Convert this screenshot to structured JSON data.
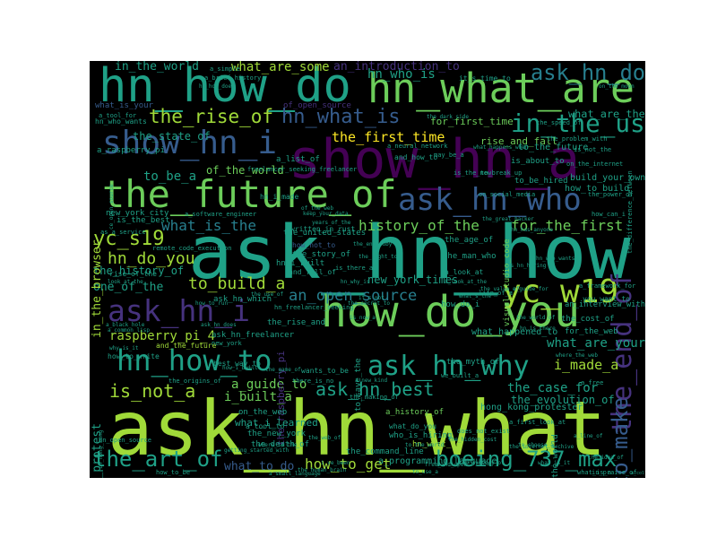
{
  "palette": {
    "background": "#000000",
    "lime": "#a0da39",
    "green": "#6ccd5a",
    "teal": "#1fa187",
    "tealDark": "#277f8e",
    "blue": "#365c8d",
    "indigo": "#46327e",
    "purple": "#440154",
    "yellow": "#fde725"
  },
  "words": [
    {
      "text": "ask_hn_what",
      "color": "lime"
    },
    {
      "text": "ask_hn_how",
      "color": "teal"
    },
    {
      "text": "show_hn_a",
      "color": "purple"
    },
    {
      "text": "hn_how_do",
      "color": "teal"
    },
    {
      "text": "hn_what_are",
      "color": "green"
    },
    {
      "text": "the_future_of",
      "color": "green"
    },
    {
      "text": "how_do_you",
      "color": "green"
    },
    {
      "text": "show_hn_i",
      "color": "blue"
    },
    {
      "text": "in_the_us",
      "color": "teal"
    },
    {
      "text": "ask_hn_who",
      "color": "blue"
    },
    {
      "text": "ask_hn_i",
      "color": "indigo"
    },
    {
      "text": "yc_w19",
      "color": "lime"
    },
    {
      "text": "hn_how_to",
      "color": "teal"
    },
    {
      "text": "ask_hn_why",
      "color": "teal"
    },
    {
      "text": "the_end_of",
      "color": "indigo"
    },
    {
      "text": "how_to_make",
      "color": "blue"
    },
    {
      "text": "ask_hn_do",
      "color": "tealDark"
    },
    {
      "text": "the_art_of",
      "color": "teal"
    },
    {
      "text": "boeing_737_max",
      "color": "teal"
    },
    {
      "text": "hn_what_is",
      "color": "blue"
    },
    {
      "text": "the_rise_of",
      "color": "lime"
    },
    {
      "text": "yc_s19",
      "color": "lime"
    },
    {
      "text": "hn_who_is",
      "color": "teal"
    },
    {
      "text": "ask_hn_best",
      "color": "teal"
    },
    {
      "text": "is_not_a",
      "color": "lime"
    },
    {
      "text": "what_are_your",
      "color": "teal"
    },
    {
      "text": "an_open_source",
      "color": "tealDark"
    },
    {
      "text": "to_build_a",
      "color": "lime"
    },
    {
      "text": "hn_do_you",
      "color": "lime"
    },
    {
      "text": "what_is_the",
      "color": "tealDark"
    },
    {
      "text": "history_of_the",
      "color": "green"
    },
    {
      "text": "for_the_first",
      "color": "green"
    },
    {
      "text": "the_first_time",
      "color": "yellow"
    },
    {
      "text": "what_are_some",
      "color": "lime"
    },
    {
      "text": "an_introduction_to",
      "color": "indigo"
    },
    {
      "text": "what_are_the",
      "color": "teal"
    },
    {
      "text": "for_first_time",
      "color": "green"
    },
    {
      "text": "the_case_for",
      "color": "teal"
    },
    {
      "text": "i_made_a",
      "color": "lime"
    },
    {
      "text": "how_to_get",
      "color": "lime"
    },
    {
      "text": "what_to_do",
      "color": "blue"
    },
    {
      "text": "a_guide_to",
      "color": "green"
    },
    {
      "text": "i_built_a",
      "color": "green"
    },
    {
      "text": "raspberry_pi_4",
      "color": "lime"
    },
    {
      "text": "the_history_of",
      "color": "teal"
    },
    {
      "text": "of_the_world",
      "color": "green"
    },
    {
      "text": "to_be_a",
      "color": "teal"
    },
    {
      "text": "in_the_world",
      "color": "teal"
    },
    {
      "text": "new_york_times",
      "color": "teal"
    },
    {
      "text": "one_of_the",
      "color": "teal"
    },
    {
      "text": "rise_and_fall",
      "color": "green"
    },
    {
      "text": "how_to_build",
      "color": "teal"
    },
    {
      "text": "build_your_own",
      "color": "teal"
    },
    {
      "text": "hong_kong_protest",
      "color": "teal"
    },
    {
      "text": "in_the_browser",
      "color": "lime"
    },
    {
      "text": "the_raspberry_pi",
      "color": "indigo"
    },
    {
      "text": "hong_kong_protester",
      "color": "teal"
    },
    {
      "text": "the_evolution_of",
      "color": "teal"
    },
    {
      "text": "the_state_of",
      "color": "teal"
    },
    {
      "text": "a_history_of",
      "color": "green"
    },
    {
      "text": "hn_what_do",
      "color": "lime"
    },
    {
      "text": "what_i_learned",
      "color": "teal"
    },
    {
      "text": "the_new_york",
      "color": "teal"
    },
    {
      "text": "the_death_of",
      "color": "teal"
    },
    {
      "text": "the_command_line",
      "color": "teal"
    },
    {
      "text": "a_programming_language",
      "color": "teal"
    },
    {
      "text": "on_the_web",
      "color": "teal"
    },
    {
      "text": "what_happened_to",
      "color": "teal"
    },
    {
      "text": "an_interview_with",
      "color": "teal"
    },
    {
      "text": "for_the_web",
      "color": "teal"
    },
    {
      "text": "the_cost_of",
      "color": "teal"
    },
    {
      "text": "visual_studio_code",
      "color": "green"
    },
    {
      "text": "the_rise_and",
      "color": "teal"
    },
    {
      "text": "the_story_of",
      "color": "teal"
    },
    {
      "text": "the_man_who",
      "color": "teal"
    },
    {
      "text": "the_age_of",
      "color": "teal"
    },
    {
      "text": "new_york_city",
      "color": "teal"
    },
    {
      "text": "is_the_best",
      "color": "teal"
    },
    {
      "text": "a_raspberry_pi",
      "color": "teal"
    },
    {
      "text": "what_is_your",
      "color": "blue"
    },
    {
      "text": "a_tool_for",
      "color": "teal"
    },
    {
      "text": "hn_who_wants",
      "color": "teal"
    },
    {
      "text": "of_open_source",
      "color": "indigo"
    },
    {
      "text": "a_list_of",
      "color": "teal"
    },
    {
      "text": "the_united_states",
      "color": "teal"
    },
    {
      "text": "how_not_to",
      "color": "blue"
    },
    {
      "text": "to_the_future",
      "color": "teal"
    },
    {
      "text": "is_about_to",
      "color": "teal"
    },
    {
      "text": "to_be_hired",
      "color": "teal"
    },
    {
      "text": "and_the_future",
      "color": "lime"
    },
    {
      "text": "ask_hn_freelancer",
      "color": "teal"
    },
    {
      "text": "rise_of_the",
      "color": "teal"
    },
    {
      "text": "how_to_write",
      "color": "teal"
    },
    {
      "text": "hn_i_made",
      "color": "teal"
    },
    {
      "text": "wants_to_be",
      "color": "teal"
    },
    {
      "text": "the_myth_of",
      "color": "teal"
    },
    {
      "text": "what_do_you",
      "color": "teal"
    },
    {
      "text": "who_is_hiring",
      "color": "teal"
    },
    {
      "text": "how_do_i",
      "color": "teal"
    },
    {
      "text": "you_want_to",
      "color": "teal"
    },
    {
      "text": "a_framework_for",
      "color": "teal"
    },
    {
      "text": "around_the_world",
      "color": "teal"
    },
    {
      "text": "what_is_a",
      "color": "teal"
    },
    {
      "text": "in_praise_of",
      "color": "teal"
    },
    {
      "text": "a_free",
      "color": "teal"
    },
    {
      "text": "getting_started_with",
      "color": "teal"
    },
    {
      "text": "how_to_be",
      "color": "teal"
    },
    {
      "text": "hn_open_source",
      "color": "teal"
    },
    {
      "text": "a_brief_history",
      "color": "teal"
    },
    {
      "text": "it_s_time_to",
      "color": "teal"
    },
    {
      "text": "a_neural_network",
      "color": "teal"
    },
    {
      "text": "freelancer_seeking_freelancer",
      "color": "teal"
    },
    {
      "text": "a_software_engineer",
      "color": "teal"
    },
    {
      "text": "and_how_to",
      "color": "teal"
    },
    {
      "text": "on_the_internet",
      "color": "teal"
    },
    {
      "text": "is_the_new",
      "color": "teal"
    },
    {
      "text": "is_not_the",
      "color": "teal"
    },
    {
      "text": "how_can_i",
      "color": "teal"
    },
    {
      "text": "the_power_of",
      "color": "teal"
    },
    {
      "text": "ask_hn_which",
      "color": "teal"
    },
    {
      "text": "look_at_the",
      "color": "teal"
    },
    {
      "text": "is_there_a",
      "color": "teal"
    },
    {
      "text": "a_look_at",
      "color": "teal"
    },
    {
      "text": "to_save_the",
      "color": "teal"
    },
    {
      "text": "the_making_of",
      "color": "teal"
    },
    {
      "text": "best_way_to",
      "color": "teal"
    },
    {
      "text": "there_is_no",
      "color": "teal"
    },
    {
      "text": "a_tool_to",
      "color": "teal"
    },
    {
      "text": "does_not_exist",
      "color": "teal"
    },
    {
      "text": "we_built_a",
      "color": "teal"
    },
    {
      "text": "the_origins_of",
      "color": "teal"
    },
    {
      "text": "a_first_look_at",
      "color": "teal"
    },
    {
      "text": "hn_i_built",
      "color": "teal"
    },
    {
      "text": "and_fall_of",
      "color": "teal"
    },
    {
      "text": "hn_freelancer_seeking",
      "color": "teal"
    },
    {
      "text": "new_york",
      "color": "teal"
    },
    {
      "text": "the_world_of",
      "color": "teal"
    },
    {
      "text": "to_break_up",
      "color": "teal"
    },
    {
      "text": "the_speed_of",
      "color": "teal"
    },
    {
      "text": "the_problem_with",
      "color": "teal"
    },
    {
      "text": "the_difference_between",
      "color": "teal"
    },
    {
      "text": "a_common_lisp",
      "color": "teal"
    },
    {
      "text": "why_is_it",
      "color": "teal"
    },
    {
      "text": "a_collection_of",
      "color": "teal"
    },
    {
      "text": "on_social_media",
      "color": "teal"
    },
    {
      "text": "written_in_rust",
      "color": "teal"
    },
    {
      "text": "a_simple",
      "color": "teal"
    },
    {
      "text": "hn_how_does",
      "color": "teal"
    },
    {
      "text": "on_the_moon",
      "color": "teal"
    },
    {
      "text": "the_value_of",
      "color": "teal"
    },
    {
      "text": "life_of_a",
      "color": "teal"
    },
    {
      "text": "the_hidden_cost",
      "color": "teal"
    },
    {
      "text": "what_happens_when",
      "color": "teal"
    },
    {
      "text": "the_great_hacker",
      "color": "teal"
    },
    {
      "text": "the_mystery_of",
      "color": "teal"
    },
    {
      "text": "the_dark_side",
      "color": "teal"
    },
    {
      "text": "may_be_a",
      "color": "teal"
    },
    {
      "text": "in_hong_kong",
      "color": "teal"
    },
    {
      "text": "as_a_service",
      "color": "teal"
    },
    {
      "text": "remote_code_execution",
      "color": "teal"
    },
    {
      "text": "the_use_of",
      "color": "teal"
    },
    {
      "text": "of_the_web",
      "color": "teal"
    },
    {
      "text": "the_right_to",
      "color": "teal"
    },
    {
      "text": "to_the_world",
      "color": "teal"
    },
    {
      "text": "a_black_hole",
      "color": "teal"
    },
    {
      "text": "hn_why_is",
      "color": "teal"
    },
    {
      "text": "it_s_not",
      "color": "teal"
    },
    {
      "text": "hn_who_wants",
      "color": "teal"
    },
    {
      "text": "is_hn_hiring",
      "color": "teal"
    },
    {
      "text": "the_secret_to",
      "color": "teal"
    },
    {
      "text": "a_guide_for",
      "color": "teal"
    },
    {
      "text": "hn_is_there",
      "color": "teal"
    },
    {
      "text": "is_now_a",
      "color": "teal"
    },
    {
      "text": "how_to_run",
      "color": "teal"
    },
    {
      "text": "a_new_kind",
      "color": "teal"
    },
    {
      "text": "keep_your_data",
      "color": "teal"
    },
    {
      "text": "what_s_the",
      "color": "teal"
    },
    {
      "text": "hn_has_anyone",
      "color": "teal"
    },
    {
      "text": "ask_hn_does",
      "color": "teal"
    },
    {
      "text": "how_i_built",
      "color": "teal"
    },
    {
      "text": "the_game_of",
      "color": "teal"
    },
    {
      "text": "a_line_of",
      "color": "teal"
    },
    {
      "text": "the_internet_archive",
      "color": "teal"
    },
    {
      "text": "i_ve_been",
      "color": "teal"
    },
    {
      "text": "the_human_brain",
      "color": "teal"
    },
    {
      "text": "ce_open_source",
      "color": "teal"
    },
    {
      "text": "to_choose_a",
      "color": "teal"
    },
    {
      "text": "to_use_a",
      "color": "teal"
    },
    {
      "text": "what_is_it",
      "color": "teal"
    },
    {
      "text": "free_and_open",
      "color": "teal"
    },
    {
      "text": "the_idea_of",
      "color": "teal"
    },
    {
      "text": "the_web_of",
      "color": "teal"
    },
    {
      "text": "a_small_language",
      "color": "teal"
    },
    {
      "text": "where_is_the",
      "color": "teal"
    },
    {
      "text": "where_the_web",
      "color": "teal"
    },
    {
      "text": "years_of_the",
      "color": "teal"
    },
    {
      "text": "the_end_ruby",
      "color": "teal"
    },
    {
      "text": "a_look_at_the",
      "color": "teal"
    }
  ]
}
